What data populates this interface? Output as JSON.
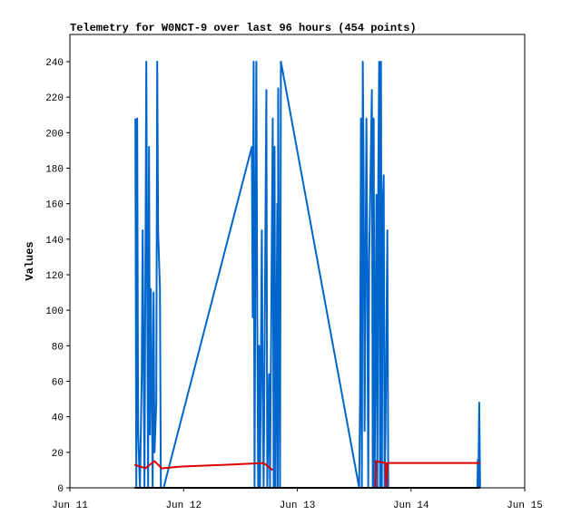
{
  "chart_data": {
    "type": "line",
    "title": "Telemetry for W0NCT-9 over last 96 hours (454 points)",
    "y_label": "Values",
    "xlim": [
      11,
      15
    ],
    "xticks": [
      {
        "value": 11,
        "label": "Jun 11"
      },
      {
        "value": 12,
        "label": "Jun 12"
      },
      {
        "value": 13,
        "label": "Jun 13"
      },
      {
        "value": 14,
        "label": "Jun 14"
      },
      {
        "value": 15,
        "label": "Jun 15"
      }
    ],
    "ylim": [
      0,
      255.3
    ],
    "yticks": [
      0,
      20,
      40,
      60,
      80,
      100,
      120,
      140,
      160,
      180,
      200,
      220,
      240
    ],
    "grid": false,
    "series": [
      {
        "color": "#0066cc",
        "x": [
          11.576,
          11.584,
          11.592,
          11.6,
          11.616,
          11.624,
          11.632,
          11.64,
          11.656,
          11.664,
          11.672,
          11.688,
          11.696,
          11.704,
          11.712,
          11.728,
          11.736,
          11.744,
          11.76,
          11.768,
          11.776,
          11.784,
          11.792,
          11.8,
          11.824,
          12.6,
          12.608,
          12.616,
          12.624,
          12.632,
          12.64,
          12.648,
          12.656,
          12.664,
          12.672,
          12.688,
          12.696,
          12.704,
          12.728,
          12.736,
          12.752,
          12.76,
          12.784,
          12.792,
          12.8,
          12.808,
          12.824,
          12.828,
          12.832,
          12.84,
          12.848,
          12.856,
          13.544,
          13.552,
          13.56,
          13.568,
          13.576,
          13.584,
          13.592,
          13.608,
          13.616,
          13.624,
          13.632,
          13.656,
          13.664,
          13.672,
          13.68,
          13.696,
          13.704,
          13.712,
          13.72,
          13.728,
          13.736,
          13.744,
          13.752,
          13.76,
          13.768,
          13.776,
          13.792,
          13.8,
          14.584,
          14.588,
          14.592,
          14.6,
          14.608
        ],
        "values": [
          208,
          0,
          208,
          32,
          0,
          32,
          64,
          145,
          0,
          120,
          240,
          0,
          192,
          30,
          112,
          0,
          110,
          20,
          48,
          240,
          145,
          128,
          112,
          0,
          0,
          192,
          96,
          240,
          0,
          145,
          240,
          96,
          0,
          80,
          0,
          145,
          48,
          0,
          224,
          0,
          64,
          0,
          208,
          0,
          192,
          0,
          160,
          0,
          225,
          100,
          0,
          240,
          0,
          48,
          208,
          0,
          240,
          168,
          32,
          208,
          112,
          0,
          128,
          224,
          0,
          208,
          0,
          165,
          0,
          170,
          240,
          0,
          240,
          0,
          160,
          176,
          0,
          32,
          145,
          0,
          0,
          16,
          0,
          48,
          0
        ]
      },
      {
        "color": "#dd0000",
        "x": [
          11.568,
          11.664,
          11.744,
          11.808,
          11.984,
          12.384,
          12.704,
          12.784,
          null,
          13.688,
          13.692,
          13.776,
          13.784,
          13.792,
          14.608
        ],
        "values": [
          13,
          11,
          15,
          11,
          12,
          13,
          14,
          10,
          null,
          0,
          15,
          14,
          0,
          14,
          14
        ]
      },
      {
        "color": "#000000",
        "x": [
          11.568,
          14.608
        ],
        "values": [
          0,
          0
        ]
      }
    ]
  }
}
